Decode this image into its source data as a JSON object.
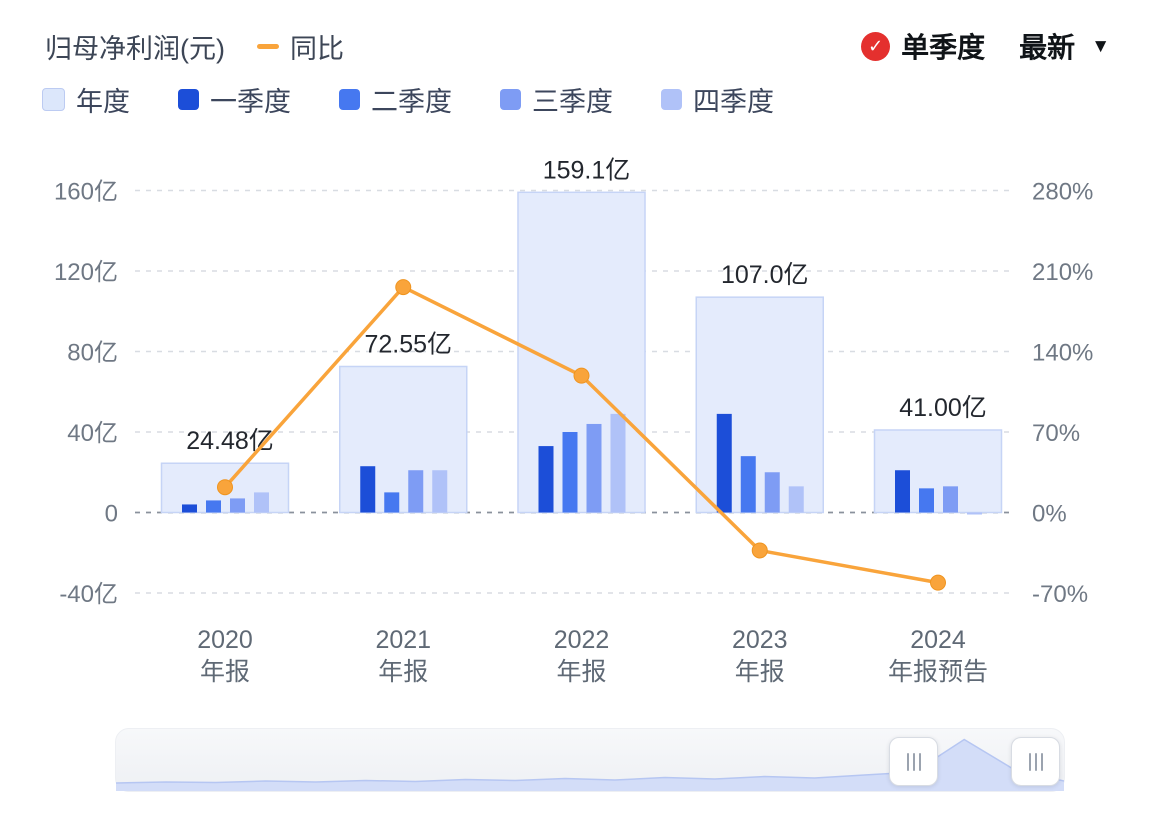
{
  "header": {
    "title": "归母净利润(元)",
    "yoy_label": "同比",
    "mode_label": "单季度",
    "latest_label": "最新"
  },
  "icons": {
    "check": "✓",
    "caret_down": "▼"
  },
  "colors": {
    "yoy_line": "#f9a43b",
    "annual_fill": "#e4ebfc",
    "annual_stroke": "#c6d4f6",
    "check_red": "#e4302e"
  },
  "legend": [
    {
      "key": "annual",
      "label": "年度",
      "color": "#dce7fb",
      "border": "#bccbf2"
    },
    {
      "key": "q1",
      "label": "一季度",
      "color": "#1c4ed8"
    },
    {
      "key": "q2",
      "label": "二季度",
      "color": "#4678f0"
    },
    {
      "key": "q3",
      "label": "三季度",
      "color": "#7e9cf4"
    },
    {
      "key": "q4",
      "label": "四季度",
      "color": "#b0c2f8"
    }
  ],
  "chart_data": {
    "type": "bar",
    "title": "归母净利润(元)",
    "categories": [
      [
        "2020",
        "年报"
      ],
      [
        "2021",
        "年报"
      ],
      [
        "2022",
        "年报"
      ],
      [
        "2023",
        "年报"
      ],
      [
        "2024",
        "年报预告"
      ]
    ],
    "annual": {
      "name": "年度",
      "unit": "亿",
      "values": [
        24.48,
        72.55,
        159.1,
        107.0,
        41.0
      ],
      "labels": [
        "24.48亿",
        "72.55亿",
        "159.1亿",
        "107.0亿",
        "41.00亿"
      ],
      "fill": "#e4ebfc",
      "stroke": "#c6d4f6"
    },
    "series": [
      {
        "key": "q1",
        "name": "一季度",
        "color": "#1c4ed8",
        "values": [
          4,
          23,
          33,
          49,
          21
        ]
      },
      {
        "key": "q2",
        "name": "二季度",
        "color": "#4678f0",
        "values": [
          6,
          10,
          40,
          28,
          12
        ]
      },
      {
        "key": "q3",
        "name": "三季度",
        "color": "#7e9cf4",
        "values": [
          7,
          21,
          44,
          20,
          13
        ]
      },
      {
        "key": "q4",
        "name": "四季度",
        "color": "#b0c2f8",
        "values": [
          10,
          21,
          49,
          13,
          -1
        ]
      }
    ],
    "line": {
      "name": "同比",
      "unit": "%",
      "color": "#f9a43b",
      "values": [
        22,
        196,
        119,
        -33,
        -61
      ]
    },
    "left_axis": {
      "ticks": [
        "160亿",
        "120亿",
        "80亿",
        "40亿",
        "0",
        "-40亿"
      ],
      "values": [
        160,
        120,
        80,
        40,
        0,
        -40
      ]
    },
    "right_axis": {
      "ticks": [
        "280%",
        "210%",
        "140%",
        "70%",
        "0%",
        "-70%"
      ],
      "values": [
        280,
        210,
        140,
        70,
        0,
        -70
      ]
    },
    "grid": true,
    "legend_position": "top",
    "left_ylim": [
      -40,
      160
    ],
    "right_ylim": [
      -70,
      280
    ]
  },
  "scrollbar": {
    "preview_profile": [
      0.08,
      0.1,
      0.09,
      0.12,
      0.1,
      0.13,
      0.11,
      0.15,
      0.13,
      0.17,
      0.14,
      0.19,
      0.16,
      0.21,
      0.18,
      0.24,
      0.3,
      0.95,
      0.35,
      0.12
    ]
  }
}
